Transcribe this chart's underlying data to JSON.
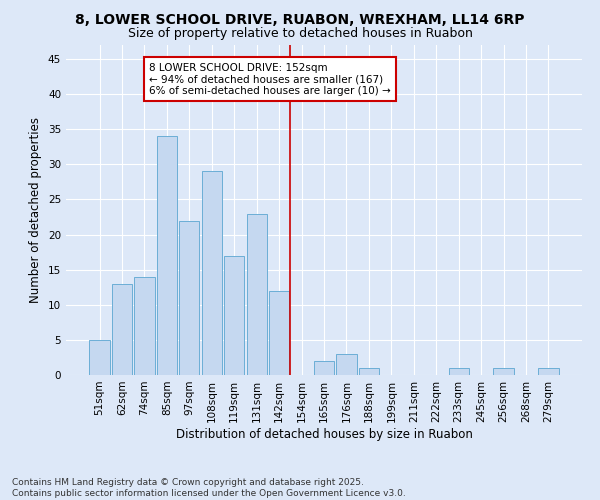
{
  "title1": "8, LOWER SCHOOL DRIVE, RUABON, WREXHAM, LL14 6RP",
  "title2": "Size of property relative to detached houses in Ruabon",
  "xlabel": "Distribution of detached houses by size in Ruabon",
  "ylabel": "Number of detached properties",
  "bar_labels": [
    "51sqm",
    "62sqm",
    "74sqm",
    "85sqm",
    "97sqm",
    "108sqm",
    "119sqm",
    "131sqm",
    "142sqm",
    "154sqm",
    "165sqm",
    "176sqm",
    "188sqm",
    "199sqm",
    "211sqm",
    "222sqm",
    "233sqm",
    "245sqm",
    "256sqm",
    "268sqm",
    "279sqm"
  ],
  "bar_values": [
    5,
    13,
    14,
    34,
    22,
    29,
    17,
    23,
    12,
    0,
    2,
    3,
    1,
    0,
    0,
    0,
    1,
    0,
    1,
    0,
    1
  ],
  "bar_color": "#c5d8f0",
  "bar_edge_color": "#6baed6",
  "vline_color": "#cc0000",
  "annotation_text": "8 LOWER SCHOOL DRIVE: 152sqm\n← 94% of detached houses are smaller (167)\n6% of semi-detached houses are larger (10) →",
  "annotation_box_color": "#cc0000",
  "background_color": "#dde8f8",
  "grid_color": "#ffffff",
  "ylim": [
    0,
    47
  ],
  "yticks": [
    0,
    5,
    10,
    15,
    20,
    25,
    30,
    35,
    40,
    45
  ],
  "title_fontsize": 10,
  "subtitle_fontsize": 9,
  "axis_label_fontsize": 8.5,
  "tick_fontsize": 7.5,
  "annotation_fontsize": 7.5,
  "footer_fontsize": 6.5,
  "footer_text": "Contains HM Land Registry data © Crown copyright and database right 2025.\nContains public sector information licensed under the Open Government Licence v3.0."
}
